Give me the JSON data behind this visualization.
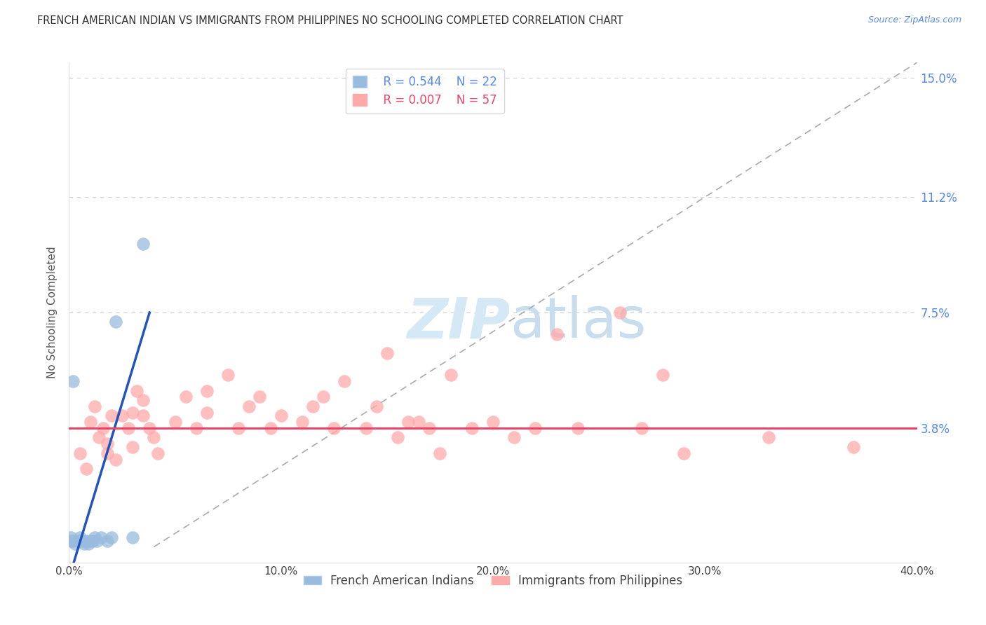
{
  "title": "FRENCH AMERICAN INDIAN VS IMMIGRANTS FROM PHILIPPINES NO SCHOOLING COMPLETED CORRELATION CHART",
  "source": "Source: ZipAtlas.com",
  "ylabel": "No Schooling Completed",
  "xlim": [
    0.0,
    0.4
  ],
  "ylim": [
    -0.005,
    0.155
  ],
  "ytick_labels": [
    "3.8%",
    "7.5%",
    "11.2%",
    "15.0%"
  ],
  "ytick_values": [
    0.038,
    0.075,
    0.112,
    0.15
  ],
  "xtick_labels": [
    "0.0%",
    "10.0%",
    "20.0%",
    "30.0%",
    "40.0%"
  ],
  "xtick_values": [
    0.0,
    0.1,
    0.2,
    0.3,
    0.4
  ],
  "legend_blue_label": "French American Indians",
  "legend_pink_label": "Immigrants from Philippines",
  "legend_blue_r": "R = 0.544",
  "legend_blue_n": "N = 22",
  "legend_pink_r": "R = 0.007",
  "legend_pink_n": "N = 57",
  "blue_color": "#99BBDD",
  "pink_color": "#FFAAAA",
  "blue_line_color": "#2255BB",
  "pink_line_color": "#EE4466",
  "blue_scatter": [
    [
      0.001,
      0.002
    ],
    [
      0.002,
      0.002
    ],
    [
      0.003,
      0.001
    ],
    [
      0.004,
      0.002
    ],
    [
      0.005,
      0.002
    ],
    [
      0.005,
      0.003
    ],
    [
      0.006,
      0.002
    ],
    [
      0.007,
      0.001
    ],
    [
      0.008,
      0.002
    ],
    [
      0.009,
      0.001
    ],
    [
      0.01,
      0.002
    ],
    [
      0.011,
      0.002
    ],
    [
      0.012,
      0.003
    ],
    [
      0.013,
      0.002
    ],
    [
      0.015,
      0.003
    ],
    [
      0.018,
      0.002
    ],
    [
      0.02,
      0.003
    ],
    [
      0.03,
      0.003
    ],
    [
      0.002,
      0.053
    ],
    [
      0.035,
      0.097
    ],
    [
      0.022,
      0.072
    ],
    [
      0.001,
      0.003
    ]
  ],
  "pink_scatter": [
    [
      0.005,
      0.03
    ],
    [
      0.008,
      0.025
    ],
    [
      0.01,
      0.04
    ],
    [
      0.012,
      0.045
    ],
    [
      0.014,
      0.035
    ],
    [
      0.016,
      0.038
    ],
    [
      0.018,
      0.033
    ],
    [
      0.018,
      0.03
    ],
    [
      0.02,
      0.042
    ],
    [
      0.022,
      0.028
    ],
    [
      0.025,
      0.042
    ],
    [
      0.028,
      0.038
    ],
    [
      0.03,
      0.043
    ],
    [
      0.03,
      0.032
    ],
    [
      0.032,
      0.05
    ],
    [
      0.035,
      0.047
    ],
    [
      0.035,
      0.042
    ],
    [
      0.038,
      0.038
    ],
    [
      0.04,
      0.035
    ],
    [
      0.042,
      0.03
    ],
    [
      0.05,
      0.04
    ],
    [
      0.055,
      0.048
    ],
    [
      0.06,
      0.038
    ],
    [
      0.065,
      0.05
    ],
    [
      0.065,
      0.043
    ],
    [
      0.075,
      0.055
    ],
    [
      0.08,
      0.038
    ],
    [
      0.085,
      0.045
    ],
    [
      0.09,
      0.048
    ],
    [
      0.095,
      0.038
    ],
    [
      0.1,
      0.042
    ],
    [
      0.11,
      0.04
    ],
    [
      0.115,
      0.045
    ],
    [
      0.12,
      0.048
    ],
    [
      0.125,
      0.038
    ],
    [
      0.13,
      0.053
    ],
    [
      0.14,
      0.038
    ],
    [
      0.145,
      0.045
    ],
    [
      0.15,
      0.062
    ],
    [
      0.155,
      0.035
    ],
    [
      0.16,
      0.04
    ],
    [
      0.165,
      0.04
    ],
    [
      0.17,
      0.038
    ],
    [
      0.175,
      0.03
    ],
    [
      0.18,
      0.055
    ],
    [
      0.19,
      0.038
    ],
    [
      0.2,
      0.04
    ],
    [
      0.21,
      0.035
    ],
    [
      0.22,
      0.038
    ],
    [
      0.23,
      0.068
    ],
    [
      0.24,
      0.038
    ],
    [
      0.26,
      0.075
    ],
    [
      0.27,
      0.038
    ],
    [
      0.28,
      0.055
    ],
    [
      0.29,
      0.03
    ],
    [
      0.33,
      0.035
    ],
    [
      0.37,
      0.032
    ]
  ],
  "bg_color": "#FFFFFF",
  "grid_color": "#CCCCCC",
  "watermark_color": "#D5E8F5"
}
